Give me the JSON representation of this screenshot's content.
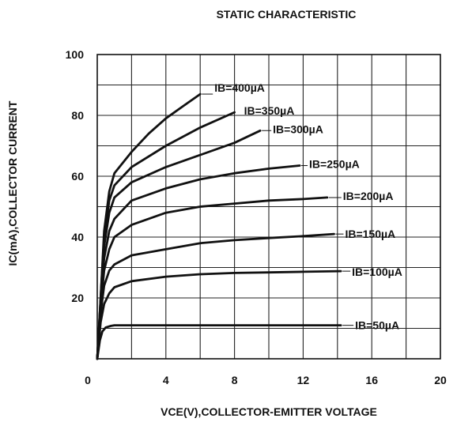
{
  "chart_data": {
    "type": "line",
    "title": "STATIC CHARACTERISTIC",
    "xlabel": "VCE(V),COLLECTOR-EMITTER VOLTAGE",
    "ylabel": "IC(mA),COLLECTOR CURRENT",
    "xlim": [
      0,
      20
    ],
    "ylim": [
      0,
      100
    ],
    "x_ticks": [
      0,
      4,
      8,
      12,
      16,
      20
    ],
    "y_ticks": [
      20,
      40,
      60,
      80,
      100
    ],
    "x_tick_labels": [
      "0",
      "4",
      "8",
      "12",
      "16",
      "20"
    ],
    "y_tick_labels": [
      "20",
      "40",
      "60",
      "80",
      "100"
    ],
    "grid": true,
    "series": [
      {
        "name": "IB=400µA",
        "label": "IB=400µA",
        "points": [
          [
            0,
            0
          ],
          [
            0.2,
            20
          ],
          [
            0.4,
            42
          ],
          [
            0.7,
            55
          ],
          [
            1,
            61
          ],
          [
            2,
            68
          ],
          [
            3,
            74
          ],
          [
            4,
            79
          ],
          [
            5,
            83
          ],
          [
            6,
            87
          ]
        ]
      },
      {
        "name": "IB=350µA",
        "label": "IB=350µA",
        "points": [
          [
            0,
            0
          ],
          [
            0.2,
            20
          ],
          [
            0.4,
            40
          ],
          [
            0.7,
            52
          ],
          [
            1,
            57
          ],
          [
            2,
            63
          ],
          [
            4,
            70
          ],
          [
            6,
            76
          ],
          [
            8,
            81
          ]
        ]
      },
      {
        "name": "IB=300µA",
        "label": "IB=300µA",
        "points": [
          [
            0,
            0
          ],
          [
            0.2,
            19
          ],
          [
            0.4,
            37
          ],
          [
            0.7,
            48
          ],
          [
            1,
            53
          ],
          [
            2,
            58
          ],
          [
            4,
            63
          ],
          [
            6,
            67
          ],
          [
            8,
            71
          ],
          [
            9.5,
            75
          ]
        ]
      },
      {
        "name": "IB=250µA",
        "label": "IB=250µA",
        "points": [
          [
            0,
            0
          ],
          [
            0.2,
            18
          ],
          [
            0.4,
            33
          ],
          [
            0.7,
            42
          ],
          [
            1,
            46
          ],
          [
            2,
            52
          ],
          [
            4,
            56
          ],
          [
            6,
            59
          ],
          [
            8,
            61
          ],
          [
            10,
            62.5
          ],
          [
            11.8,
            63.5
          ]
        ]
      },
      {
        "name": "IB=200µA",
        "label": "IB=200µA",
        "points": [
          [
            0,
            0
          ],
          [
            0.2,
            17
          ],
          [
            0.4,
            29
          ],
          [
            0.7,
            36
          ],
          [
            1,
            40
          ],
          [
            2,
            44
          ],
          [
            4,
            48
          ],
          [
            6,
            50
          ],
          [
            8,
            51
          ],
          [
            10,
            52
          ],
          [
            12,
            52.5
          ],
          [
            13.4,
            53
          ]
        ]
      },
      {
        "name": "IB=150µA",
        "label": "IB=150µA",
        "points": [
          [
            0,
            0
          ],
          [
            0.2,
            15
          ],
          [
            0.4,
            24
          ],
          [
            0.7,
            29
          ],
          [
            1,
            31
          ],
          [
            2,
            34
          ],
          [
            4,
            36
          ],
          [
            6,
            38
          ],
          [
            8,
            39
          ],
          [
            10,
            39.7
          ],
          [
            12,
            40.3
          ],
          [
            13.8,
            41
          ]
        ]
      },
      {
        "name": "IB=100µA",
        "label": "IB=100µA",
        "points": [
          [
            0,
            0
          ],
          [
            0.2,
            12
          ],
          [
            0.4,
            18
          ],
          [
            0.7,
            21.5
          ],
          [
            1,
            23.5
          ],
          [
            2,
            25.5
          ],
          [
            4,
            27
          ],
          [
            6,
            27.8
          ],
          [
            8,
            28.2
          ],
          [
            10,
            28.4
          ],
          [
            12,
            28.6
          ],
          [
            14.2,
            28.8
          ]
        ]
      },
      {
        "name": "IB=50µA",
        "label": "IB=50µA",
        "points": [
          [
            0,
            0
          ],
          [
            0.15,
            6
          ],
          [
            0.3,
            9
          ],
          [
            0.5,
            10.3
          ],
          [
            0.8,
            10.8
          ],
          [
            1,
            11
          ],
          [
            3,
            11
          ],
          [
            6,
            11
          ],
          [
            10,
            11
          ],
          [
            14.2,
            11
          ]
        ]
      }
    ]
  }
}
